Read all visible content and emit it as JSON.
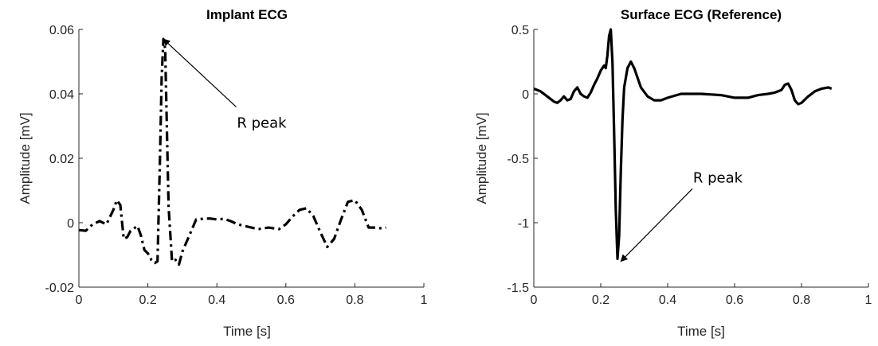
{
  "chart_data": [
    {
      "type": "line",
      "title": "Implant ECG",
      "xlabel": "Time [s]",
      "ylabel": "Amplitude [mV]",
      "xlim": [
        0,
        1
      ],
      "ylim": [
        -0.02,
        0.06
      ],
      "xticks": [
        "0",
        "0.2",
        "0.4",
        "0.6",
        "0.8",
        "1"
      ],
      "yticks": [
        "-0.02",
        "0",
        "0.02",
        "0.04",
        "0.06"
      ],
      "line_style": "dash-dot",
      "grid": false,
      "annotation": {
        "text": "R peak",
        "text_at": [
          0.53,
          0.031
        ],
        "arrow_to": [
          0.245,
          0.057
        ]
      },
      "series": [
        {
          "x": [
            0.0,
            0.02,
            0.04,
            0.06,
            0.08,
            0.1,
            0.11,
            0.12,
            0.13,
            0.14,
            0.15,
            0.17,
            0.18,
            0.19,
            0.2,
            0.21,
            0.22,
            0.228,
            0.235,
            0.24,
            0.245,
            0.25,
            0.255,
            0.26,
            0.27,
            0.28,
            0.29,
            0.3,
            0.32,
            0.34,
            0.36,
            0.38,
            0.4,
            0.42,
            0.44,
            0.46,
            0.48,
            0.5,
            0.52,
            0.55,
            0.58,
            0.6,
            0.62,
            0.64,
            0.66,
            0.68,
            0.7,
            0.72,
            0.74,
            0.76,
            0.78,
            0.8,
            0.82,
            0.84,
            0.86,
            0.88,
            0.89
          ],
          "y": [
            -0.0023,
            -0.0025,
            -0.0005,
            0.0005,
            -0.0005,
            0.004,
            0.007,
            0.0055,
            -0.005,
            -0.0045,
            -0.0025,
            -0.001,
            -0.004,
            -0.0085,
            -0.0095,
            -0.0115,
            -0.0125,
            -0.012,
            0.02,
            0.045,
            0.057,
            0.054,
            0.03,
            0.005,
            -0.012,
            -0.0115,
            -0.013,
            -0.009,
            -0.004,
            0.001,
            0.0012,
            0.0013,
            0.001,
            0.0012,
            0.0005,
            -0.0005,
            -0.001,
            -0.0015,
            -0.002,
            -0.0015,
            -0.002,
            -0.0005,
            0.002,
            0.004,
            0.0045,
            0.002,
            -0.003,
            -0.0075,
            -0.005,
            0.001,
            0.0065,
            0.007,
            0.004,
            -0.0015,
            -0.0015,
            -0.0018,
            -0.0015
          ]
        }
      ]
    },
    {
      "type": "line",
      "title": "Surface ECG (Reference)",
      "xlabel": "Time [s]",
      "ylabel": "Amplitude [mV]",
      "xlim": [
        0,
        1
      ],
      "ylim": [
        -1.5,
        0.5
      ],
      "xticks": [
        "0",
        "0.2",
        "0.4",
        "0.6",
        "0.8",
        "1"
      ],
      "yticks": [
        "-1.5",
        "-1",
        "-0.5",
        "0",
        "0.5"
      ],
      "line_style": "solid",
      "grid": false,
      "annotation": {
        "text": "R peak",
        "text_at": [
          0.55,
          -0.65
        ],
        "arrow_to": [
          0.26,
          -1.3
        ]
      },
      "series": [
        {
          "x": [
            0.0,
            0.02,
            0.04,
            0.06,
            0.07,
            0.08,
            0.09,
            0.1,
            0.11,
            0.12,
            0.13,
            0.14,
            0.15,
            0.16,
            0.17,
            0.18,
            0.19,
            0.2,
            0.21,
            0.215,
            0.22,
            0.225,
            0.23,
            0.235,
            0.24,
            0.245,
            0.25,
            0.255,
            0.26,
            0.265,
            0.27,
            0.28,
            0.29,
            0.3,
            0.32,
            0.34,
            0.36,
            0.38,
            0.4,
            0.44,
            0.5,
            0.56,
            0.6,
            0.64,
            0.67,
            0.7,
            0.72,
            0.74,
            0.75,
            0.76,
            0.77,
            0.78,
            0.79,
            0.8,
            0.82,
            0.84,
            0.86,
            0.88,
            0.89
          ],
          "y": [
            0.04,
            0.02,
            -0.02,
            -0.06,
            -0.07,
            -0.05,
            -0.02,
            -0.05,
            -0.04,
            0.02,
            0.05,
            0.0,
            -0.02,
            -0.03,
            0.01,
            0.07,
            0.12,
            0.18,
            0.22,
            0.2,
            0.3,
            0.45,
            0.5,
            0.25,
            -0.3,
            -0.9,
            -1.28,
            -1.1,
            -0.6,
            -0.2,
            0.05,
            0.2,
            0.25,
            0.2,
            0.05,
            -0.02,
            -0.05,
            -0.05,
            -0.03,
            0.0,
            0.0,
            -0.01,
            -0.03,
            -0.03,
            -0.01,
            0.0,
            0.01,
            0.03,
            0.07,
            0.08,
            0.03,
            -0.05,
            -0.08,
            -0.07,
            -0.02,
            0.02,
            0.04,
            0.05,
            0.04
          ]
        }
      ]
    }
  ]
}
